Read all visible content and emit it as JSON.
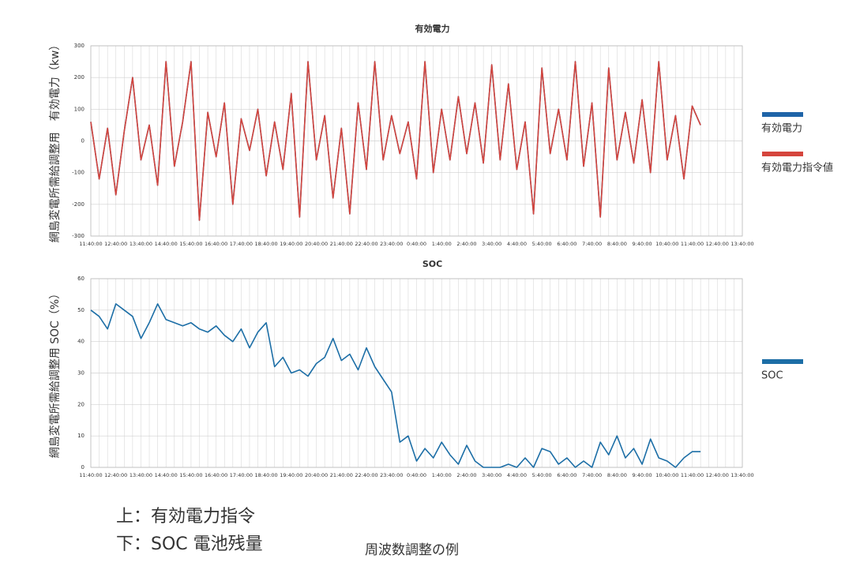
{
  "chart_data": [
    {
      "type": "line",
      "title": "有効電力",
      "y_label": "網島変電所需給調整用　有効電力（kw）",
      "categories": [
        "11:40:00",
        null,
        null,
        "12:40:00",
        null,
        null,
        "13:40:00",
        null,
        null,
        "14:40:00",
        null,
        null,
        "15:40:00",
        null,
        null,
        "16:40:00",
        null,
        null,
        "17:40:00",
        null,
        null,
        "18:40:00",
        null,
        null,
        "19:40:00",
        null,
        null,
        "20:40:00",
        null,
        null,
        "21:40:00",
        null,
        null,
        "22:40:00",
        null,
        null,
        "23:40:00",
        null,
        null,
        "0:40:00",
        null,
        null,
        "1:40:00",
        null,
        null,
        "2:40:00",
        null,
        null,
        "3:40:00",
        null,
        null,
        "4:40:00",
        null,
        null,
        "5:40:00",
        null,
        null,
        "6:40:00",
        null,
        null,
        "7:40:00",
        null,
        null,
        "8:40:00",
        null,
        null,
        "9:40:00",
        null,
        null,
        "10:40:00",
        null,
        null,
        "11:40:00",
        null,
        null,
        "12:40:00",
        null,
        null,
        "13:40:00"
      ],
      "series": [
        {
          "name": "有効電力",
          "color": "#1f64a8",
          "values": [
            60,
            -120,
            40,
            -170,
            30,
            200,
            -60,
            50,
            -140,
            250,
            -80,
            60,
            250,
            -250,
            90,
            -50,
            120,
            -200,
            70,
            -30,
            100,
            -110,
            60,
            -90,
            150,
            -240,
            250,
            -60,
            80,
            -180,
            40,
            -230,
            120,
            -90,
            250,
            -60,
            80,
            -40,
            60,
            -120,
            250,
            -100,
            100,
            -60,
            140,
            -40,
            120,
            -70,
            240,
            -60,
            180,
            -90,
            60,
            -230,
            230,
            -40,
            100,
            -60,
            250,
            -80,
            120,
            -240,
            230,
            -60,
            90,
            -70,
            130,
            -100,
            250,
            -60,
            80,
            -120,
            110,
            50,
            null,
            null,
            null,
            null,
            null
          ]
        },
        {
          "name": "有効電力指令値",
          "color": "#d5453d",
          "values": [
            60,
            -120,
            40,
            -170,
            30,
            200,
            -60,
            50,
            -140,
            250,
            -80,
            60,
            250,
            -250,
            90,
            -50,
            120,
            -200,
            70,
            -30,
            100,
            -110,
            60,
            -90,
            150,
            -240,
            250,
            -60,
            80,
            -180,
            40,
            -230,
            120,
            -90,
            250,
            -60,
            80,
            -40,
            60,
            -120,
            250,
            -100,
            100,
            -60,
            140,
            -40,
            120,
            -70,
            240,
            -60,
            180,
            -90,
            60,
            -230,
            230,
            -40,
            100,
            -60,
            250,
            -80,
            120,
            -240,
            230,
            -60,
            90,
            -70,
            130,
            -100,
            250,
            -60,
            80,
            -120,
            110,
            50,
            null,
            null,
            null,
            null,
            null
          ]
        }
      ],
      "ylim": [
        -300,
        300
      ],
      "yticks": [
        -300,
        -200,
        -100,
        0,
        100,
        200,
        300
      ],
      "grid": true
    },
    {
      "type": "line",
      "title": "SOC",
      "y_label": "網島変電所需給調整用 SOC（%）",
      "categories": [
        "11:40:00",
        null,
        null,
        "12:40:00",
        null,
        null,
        "13:40:00",
        null,
        null,
        "14:40:00",
        null,
        null,
        "15:40:00",
        null,
        null,
        "16:40:00",
        null,
        null,
        "17:40:00",
        null,
        null,
        "18:40:00",
        null,
        null,
        "19:40:00",
        null,
        null,
        "20:40:00",
        null,
        null,
        "21:40:00",
        null,
        null,
        "22:40:00",
        null,
        null,
        "23:40:00",
        null,
        null,
        "0:40:00",
        null,
        null,
        "1:40:00",
        null,
        null,
        "2:40:00",
        null,
        null,
        "3:40:00",
        null,
        null,
        "4:40:00",
        null,
        null,
        "5:40:00",
        null,
        null,
        "6:40:00",
        null,
        null,
        "7:40:00",
        null,
        null,
        "8:40:00",
        null,
        null,
        "9:40:00",
        null,
        null,
        "10:40:00",
        null,
        null,
        "11:40:00",
        null,
        null,
        "12:40:00",
        null,
        null,
        "13:40:00"
      ],
      "series": [
        {
          "name": "SOC",
          "color": "#1c6ea6",
          "values": [
            50,
            48,
            44,
            52,
            50,
            48,
            41,
            46,
            52,
            47,
            46,
            45,
            46,
            44,
            43,
            45,
            42,
            40,
            44,
            38,
            43,
            46,
            32,
            35,
            30,
            31,
            29,
            33,
            35,
            41,
            34,
            36,
            31,
            38,
            32,
            28,
            24,
            8,
            10,
            2,
            6,
            3,
            8,
            4,
            1,
            7,
            2,
            0,
            0,
            0,
            1,
            0,
            3,
            0,
            6,
            5,
            1,
            3,
            0,
            2,
            0,
            8,
            4,
            10,
            3,
            6,
            1,
            9,
            3,
            2,
            0,
            3,
            5,
            5,
            null,
            null,
            null,
            null,
            null
          ]
        }
      ],
      "ylim": [
        0,
        60
      ],
      "yticks": [
        0,
        10,
        20,
        30,
        40,
        50,
        60
      ],
      "grid": true
    }
  ],
  "captions": {
    "upper": "上：有効電力指令",
    "lower": "下：SOC 電池残量",
    "title": "周波数調整の例"
  }
}
